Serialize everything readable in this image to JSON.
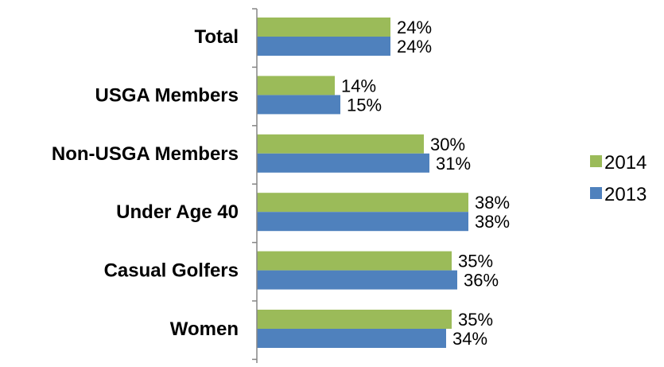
{
  "chart_data": {
    "type": "bar",
    "orientation": "horizontal",
    "categories": [
      "Total",
      "USGA Members",
      "Non-USGA Members",
      "Under Age 40",
      "Casual Golfers",
      "Women"
    ],
    "series": [
      {
        "name": "2014",
        "color": "#9BBB59",
        "values": [
          24,
          14,
          30,
          38,
          35,
          35
        ],
        "labels": [
          "24%",
          "14%",
          "30%",
          "38%",
          "35%",
          "35%"
        ]
      },
      {
        "name": "2013",
        "color": "#4F81BD",
        "values": [
          24,
          15,
          31,
          38,
          36,
          34
        ],
        "labels": [
          "24%",
          "15%",
          "31%",
          "38%",
          "36%",
          "34%"
        ]
      }
    ],
    "xlim": [
      0,
      44
    ],
    "legend_position": "right",
    "grid": false,
    "title": "",
    "xlabel": "",
    "ylabel": ""
  }
}
